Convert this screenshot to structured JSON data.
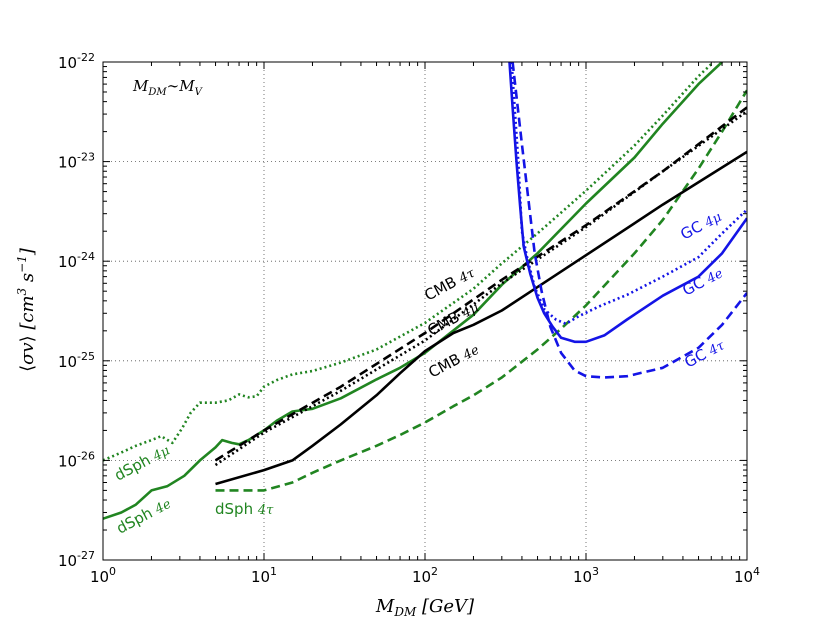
{
  "chart_data": {
    "type": "line",
    "xscale": "log",
    "yscale": "log",
    "xlim": [
      1,
      10000
    ],
    "ylim": [
      1e-27,
      1e-22
    ],
    "grid": true,
    "xlabel": "M_DM [GeV]",
    "ylabel": "⟨σv⟩ [cm³ s⁻¹]",
    "annotation": "M_DM∼M_V",
    "xticks": [
      {
        "base": "10",
        "exp": "0"
      },
      {
        "base": "10",
        "exp": "1"
      },
      {
        "base": "10",
        "exp": "2"
      },
      {
        "base": "10",
        "exp": "3"
      },
      {
        "base": "10",
        "exp": "4"
      }
    ],
    "yticks": [
      {
        "base": "10",
        "exp": "-27"
      },
      {
        "base": "10",
        "exp": "-26"
      },
      {
        "base": "10",
        "exp": "-25"
      },
      {
        "base": "10",
        "exp": "-24"
      },
      {
        "base": "10",
        "exp": "-23"
      },
      {
        "base": "10",
        "exp": "-22"
      }
    ],
    "series": [
      {
        "name": "dSph 4μ",
        "label": "dSph 4μ",
        "color": "#218521",
        "style": "dotted",
        "points": [
          [
            1.0,
            1e-26
          ],
          [
            1.3,
            1.2e-26
          ],
          [
            1.6,
            1.4e-26
          ],
          [
            2.0,
            1.6e-26
          ],
          [
            2.3,
            1.75e-26
          ],
          [
            2.7,
            1.5e-26
          ],
          [
            3.1,
            2.1e-26
          ],
          [
            3.5,
            3e-26
          ],
          [
            4.0,
            3.8e-26
          ],
          [
            5.0,
            3.8e-26
          ],
          [
            6.0,
            4e-26
          ],
          [
            7.0,
            4.6e-26
          ],
          [
            8.0,
            4.3e-26
          ],
          [
            9.0,
            4.4e-26
          ],
          [
            10,
            5.5e-26
          ],
          [
            12,
            6.4e-26
          ],
          [
            15,
            7.3e-26
          ],
          [
            20,
            7.9e-26
          ],
          [
            30,
            9.6e-26
          ],
          [
            50,
            1.3e-25
          ],
          [
            100,
            2.4e-25
          ],
          [
            200,
            5.3e-25
          ],
          [
            300,
            9.5e-25
          ],
          [
            500,
            1.9e-24
          ],
          [
            1000,
            5.1e-24
          ],
          [
            2000,
            1.45e-23
          ],
          [
            3000,
            2.9e-23
          ],
          [
            5000,
            7.2e-23
          ],
          [
            6200,
            1e-22
          ]
        ]
      },
      {
        "name": "dSph 4e",
        "label": "dSph 4e",
        "color": "#218521",
        "style": "solid",
        "points": [
          [
            1.0,
            2.6e-27
          ],
          [
            1.3,
            3e-27
          ],
          [
            1.6,
            3.6e-27
          ],
          [
            2.0,
            5e-27
          ],
          [
            2.5,
            5.5e-27
          ],
          [
            3.2,
            7e-27
          ],
          [
            4.0,
            1e-26
          ],
          [
            5.0,
            1.35e-26
          ],
          [
            5.5,
            1.6e-26
          ],
          [
            6.3,
            1.5e-26
          ],
          [
            7.0,
            1.45e-26
          ],
          [
            8.0,
            1.6e-26
          ],
          [
            10,
            2e-26
          ],
          [
            12,
            2.5e-26
          ],
          [
            15,
            3.1e-26
          ],
          [
            20,
            3.3e-26
          ],
          [
            30,
            4.2e-26
          ],
          [
            50,
            6.5e-26
          ],
          [
            70,
            8.5e-26
          ],
          [
            100,
            1.2e-25
          ],
          [
            200,
            2.9e-25
          ],
          [
            300,
            5.8e-25
          ],
          [
            500,
            1.2e-24
          ],
          [
            1000,
            3.8e-24
          ],
          [
            2000,
            1.1e-23
          ],
          [
            3000,
            2.4e-23
          ],
          [
            5000,
            6e-23
          ],
          [
            7000,
            1e-22
          ]
        ]
      },
      {
        "name": "dSph 4τ",
        "label": "dSph 4τ",
        "color": "#218521",
        "style": "dashed",
        "points": [
          [
            5.0,
            5e-27
          ],
          [
            10,
            5e-27
          ],
          [
            15,
            6e-27
          ],
          [
            20,
            7.5e-27
          ],
          [
            30,
            1e-26
          ],
          [
            50,
            1.4e-26
          ],
          [
            70,
            1.8e-26
          ],
          [
            100,
            2.4e-26
          ],
          [
            150,
            3.5e-26
          ],
          [
            200,
            4.5e-26
          ],
          [
            300,
            6.8e-26
          ],
          [
            500,
            1.3e-25
          ],
          [
            700,
            2.1e-25
          ],
          [
            1000,
            3.6e-25
          ],
          [
            2000,
            1.2e-24
          ],
          [
            3000,
            2.6e-24
          ],
          [
            5000,
            8.5e-24
          ],
          [
            7000,
            2e-23
          ],
          [
            10000,
            5.2e-23
          ]
        ]
      },
      {
        "name": "CMB 4τ",
        "label": "CMB 4τ",
        "color": "#000000",
        "style": "dashed",
        "points": [
          [
            5.0,
            1e-26
          ],
          [
            10,
            2e-26
          ],
          [
            30,
            5.5e-26
          ],
          [
            100,
            1.9e-25
          ],
          [
            300,
            6.5e-25
          ],
          [
            1000,
            2.3e-24
          ],
          [
            3000,
            8e-24
          ],
          [
            10000,
            3.5e-23
          ]
        ]
      },
      {
        "name": "CMB 4μ",
        "label": "CMB 4μ",
        "color": "#000000",
        "style": "dotted",
        "points": [
          [
            5.0,
            9e-27
          ],
          [
            10,
            1.9e-26
          ],
          [
            30,
            5e-26
          ],
          [
            100,
            1.6e-25
          ],
          [
            300,
            6e-25
          ],
          [
            1000,
            2.2e-24
          ],
          [
            3000,
            8e-24
          ],
          [
            10000,
            3.2e-23
          ]
        ]
      },
      {
        "name": "CMB 4e",
        "label": "CMB 4e",
        "color": "#000000",
        "style": "solid",
        "points": [
          [
            5.0,
            5.8e-27
          ],
          [
            10,
            8e-27
          ],
          [
            15,
            1e-26
          ],
          [
            20,
            1.4e-26
          ],
          [
            30,
            2.3e-26
          ],
          [
            50,
            4.5e-26
          ],
          [
            70,
            7.5e-26
          ],
          [
            100,
            1.25e-25
          ],
          [
            150,
            1.9e-25
          ],
          [
            200,
            2.3e-25
          ],
          [
            300,
            3.2e-25
          ],
          [
            500,
            5.5e-25
          ],
          [
            1000,
            1.15e-24
          ],
          [
            3000,
            3.7e-24
          ],
          [
            10000,
            1.25e-23
          ]
        ]
      },
      {
        "name": "GC 4μ",
        "label": "GC 4μ",
        "color": "#1414e6",
        "style": "dotted",
        "points": [
          [
            345,
            1e-22
          ],
          [
            380,
            1e-23
          ],
          [
            400,
            2e-24
          ],
          [
            430,
            1.1e-24
          ],
          [
            480,
            5.5e-25
          ],
          [
            550,
            3.3e-25
          ],
          [
            650,
            2.6e-25
          ],
          [
            750,
            2.35e-25
          ],
          [
            900,
            2.8e-25
          ],
          [
            1200,
            3.5e-25
          ],
          [
            1800,
            4.6e-25
          ],
          [
            3000,
            7e-25
          ],
          [
            5000,
            1.1e-24
          ],
          [
            7000,
            1.9e-24
          ],
          [
            10000,
            3.3e-24
          ]
        ]
      },
      {
        "name": "GC 4e",
        "label": "GC 4e",
        "color": "#1414e6",
        "style": "solid",
        "points": [
          [
            335,
            1e-22
          ],
          [
            350,
            3.5e-23
          ],
          [
            370,
            1e-23
          ],
          [
            390,
            3.5e-24
          ],
          [
            410,
            1.4e-24
          ],
          [
            450,
            7.5e-25
          ],
          [
            500,
            4.3e-25
          ],
          [
            550,
            3e-25
          ],
          [
            620,
            2.2e-25
          ],
          [
            700,
            1.7e-25
          ],
          [
            850,
            1.55e-25
          ],
          [
            1000,
            1.55e-25
          ],
          [
            1300,
            1.8e-25
          ],
          [
            1800,
            2.6e-25
          ],
          [
            3000,
            4.5e-25
          ],
          [
            5000,
            7e-25
          ],
          [
            7000,
            1.2e-24
          ],
          [
            10000,
            2.7e-24
          ]
        ]
      },
      {
        "name": "GC 4τ",
        "label": "GC 4τ",
        "color": "#1414e6",
        "style": "dashed",
        "points": [
          [
            350,
            1e-22
          ],
          [
            400,
            1.5e-23
          ],
          [
            440,
            4e-24
          ],
          [
            480,
            1.2e-24
          ],
          [
            530,
            5e-25
          ],
          [
            600,
            2.2e-25
          ],
          [
            700,
            1.2e-25
          ],
          [
            850,
            8e-26
          ],
          [
            1000,
            7e-26
          ],
          [
            1300,
            6.8e-26
          ],
          [
            1800,
            7e-26
          ],
          [
            3000,
            8.5e-26
          ],
          [
            5000,
            1.35e-25
          ],
          [
            7000,
            2.3e-25
          ],
          [
            10000,
            4.8e-25
          ]
        ]
      }
    ]
  }
}
